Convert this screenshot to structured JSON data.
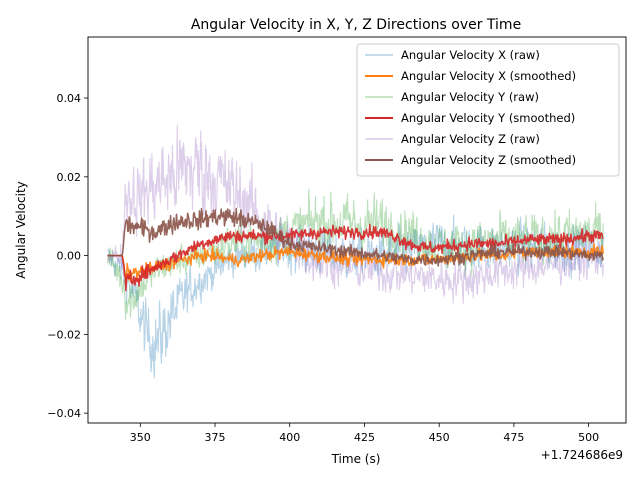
{
  "chart_data": {
    "type": "line",
    "title": "Angular Velocity in X, Y, Z Directions over Time",
    "xlabel": "Time (s)",
    "ylabel": "Angular Velocity",
    "x_offset_label": "+1.724686e9",
    "xlim": [
      332.5,
      512.5
    ],
    "ylim": [
      -0.0425,
      0.0555
    ],
    "x_ticks": [
      350,
      375,
      400,
      425,
      450,
      475,
      500
    ],
    "x_tick_labels": [
      "350",
      "375",
      "400",
      "425",
      "450",
      "475",
      "500"
    ],
    "y_ticks": [
      -0.04,
      -0.02,
      0.0,
      0.02,
      0.04
    ],
    "y_tick_labels": [
      "−0.04",
      "−0.02",
      "0.00",
      "0.02",
      "0.04"
    ],
    "grid": false,
    "legend_position": "upper right",
    "series": [
      {
        "name": "Angular Velocity X (raw)",
        "color": "#1f77b4",
        "style": "raw",
        "x": [
          339,
          344,
          348,
          352,
          356,
          360,
          365,
          370,
          375,
          380,
          385,
          390,
          395,
          400,
          410,
          420,
          430,
          440,
          450,
          460,
          470,
          480,
          490,
          500,
          505
        ],
        "y": [
          0.0,
          -0.004,
          -0.01,
          -0.02,
          -0.022,
          -0.016,
          -0.01,
          -0.006,
          -0.004,
          -0.001,
          0.0,
          0.001,
          0.002,
          0.002,
          0.001,
          0.0,
          0.0,
          0.001,
          0.003,
          0.002,
          0.002,
          0.002,
          0.002,
          0.002,
          0.002
        ],
        "noise": [
          0.003,
          0.004,
          0.006,
          0.008,
          0.009,
          0.008,
          0.006,
          0.005,
          0.004,
          0.004,
          0.004,
          0.005,
          0.005,
          0.006,
          0.006,
          0.006,
          0.006,
          0.006,
          0.006,
          0.006,
          0.006,
          0.006,
          0.006,
          0.006,
          0.006
        ]
      },
      {
        "name": "Angular Velocity X (smoothed)",
        "color": "#ff7f0e",
        "style": "smoothed",
        "x": [
          339,
          344,
          345,
          350,
          355,
          360,
          365,
          370,
          375,
          380,
          385,
          390,
          400,
          410,
          420,
          430,
          440,
          450,
          460,
          470,
          480,
          490,
          500,
          505
        ],
        "y": [
          0.0,
          0.0,
          -0.005,
          -0.004,
          -0.003,
          -0.002,
          -0.001,
          0.0,
          0.0,
          -0.001,
          -0.001,
          0.0,
          0.001,
          0.0,
          -0.001,
          -0.001,
          -0.001,
          -0.001,
          0.0,
          0.0,
          0.001,
          0.001,
          0.001,
          0.001
        ],
        "noise": [
          0.0,
          0.0,
          0.0015,
          0.001,
          0.001,
          0.001,
          0.001,
          0.001,
          0.001,
          0.001,
          0.001,
          0.001,
          0.001,
          0.001,
          0.001,
          0.001,
          0.001,
          0.001,
          0.001,
          0.001,
          0.001,
          0.001,
          0.001,
          0.001
        ]
      },
      {
        "name": "Angular Velocity Y (raw)",
        "color": "#2ca02c",
        "style": "raw",
        "x": [
          339,
          344,
          346,
          350,
          355,
          360,
          370,
          380,
          390,
          400,
          410,
          420,
          430,
          440,
          445,
          450,
          460,
          470,
          480,
          490,
          500,
          505
        ],
        "y": [
          0.0,
          -0.006,
          -0.012,
          -0.008,
          -0.004,
          -0.002,
          0.0,
          0.003,
          0.004,
          0.006,
          0.009,
          0.008,
          0.008,
          0.006,
          0.004,
          0.002,
          0.003,
          0.004,
          0.004,
          0.005,
          0.006,
          0.006
        ],
        "noise": [
          0.003,
          0.005,
          0.007,
          0.005,
          0.004,
          0.004,
          0.004,
          0.005,
          0.006,
          0.006,
          0.007,
          0.007,
          0.007,
          0.006,
          0.006,
          0.006,
          0.006,
          0.006,
          0.006,
          0.006,
          0.006,
          0.006
        ]
      },
      {
        "name": "Angular Velocity Y (smoothed)",
        "color": "#d62728",
        "style": "smoothed",
        "x": [
          339,
          344,
          345,
          350,
          355,
          360,
          365,
          370,
          375,
          380,
          385,
          390,
          400,
          410,
          420,
          430,
          435,
          440,
          445,
          450,
          460,
          470,
          480,
          490,
          500,
          505
        ],
        "y": [
          0.0,
          0.0,
          -0.007,
          -0.005,
          -0.003,
          -0.001,
          0.001,
          0.003,
          0.004,
          0.005,
          0.005,
          0.005,
          0.005,
          0.006,
          0.006,
          0.006,
          0.005,
          0.003,
          0.002,
          0.002,
          0.003,
          0.003,
          0.004,
          0.004,
          0.005,
          0.005
        ],
        "noise": [
          0.0,
          0.0,
          0.0015,
          0.0012,
          0.001,
          0.001,
          0.001,
          0.001,
          0.001,
          0.001,
          0.001,
          0.001,
          0.001,
          0.001,
          0.001,
          0.001,
          0.001,
          0.001,
          0.001,
          0.001,
          0.001,
          0.001,
          0.001,
          0.001,
          0.001,
          0.001
        ]
      },
      {
        "name": "Angular Velocity Z (raw)",
        "color": "#9467bd",
        "style": "raw",
        "x": [
          339,
          344,
          345,
          350,
          355,
          360,
          365,
          370,
          375,
          380,
          385,
          390,
          395,
          400,
          410,
          420,
          430,
          440,
          450,
          460,
          470,
          480,
          490,
          500,
          505
        ],
        "y": [
          0.0,
          0.0,
          0.016,
          0.015,
          0.018,
          0.02,
          0.022,
          0.022,
          0.02,
          0.017,
          0.014,
          0.01,
          0.006,
          0.003,
          -0.001,
          -0.003,
          -0.004,
          -0.005,
          -0.006,
          -0.006,
          -0.004,
          -0.003,
          -0.002,
          -0.001,
          -0.001
        ],
        "noise": [
          0.002,
          0.003,
          0.008,
          0.009,
          0.01,
          0.011,
          0.012,
          0.012,
          0.011,
          0.01,
          0.009,
          0.008,
          0.007,
          0.006,
          0.006,
          0.005,
          0.005,
          0.005,
          0.005,
          0.005,
          0.005,
          0.005,
          0.005,
          0.005,
          0.005
        ]
      },
      {
        "name": "Angular Velocity Z (smoothed)",
        "color": "#8c564b",
        "style": "smoothed",
        "x": [
          339,
          344,
          345,
          350,
          355,
          360,
          365,
          370,
          375,
          380,
          385,
          390,
          395,
          400,
          410,
          420,
          430,
          440,
          450,
          460,
          470,
          480,
          490,
          500,
          505
        ],
        "y": [
          0.0,
          0.0,
          0.008,
          0.007,
          0.006,
          0.008,
          0.009,
          0.009,
          0.01,
          0.01,
          0.009,
          0.008,
          0.006,
          0.003,
          0.002,
          0.001,
          0.0,
          -0.001,
          -0.001,
          0.0,
          0.001,
          0.001,
          0.001,
          0.0,
          0.0
        ],
        "noise": [
          0.0,
          0.0,
          0.0015,
          0.0015,
          0.0015,
          0.0015,
          0.0015,
          0.0015,
          0.0015,
          0.0015,
          0.0015,
          0.0012,
          0.0012,
          0.001,
          0.001,
          0.001,
          0.001,
          0.001,
          0.001,
          0.001,
          0.001,
          0.001,
          0.001,
          0.001,
          0.001
        ]
      }
    ]
  }
}
